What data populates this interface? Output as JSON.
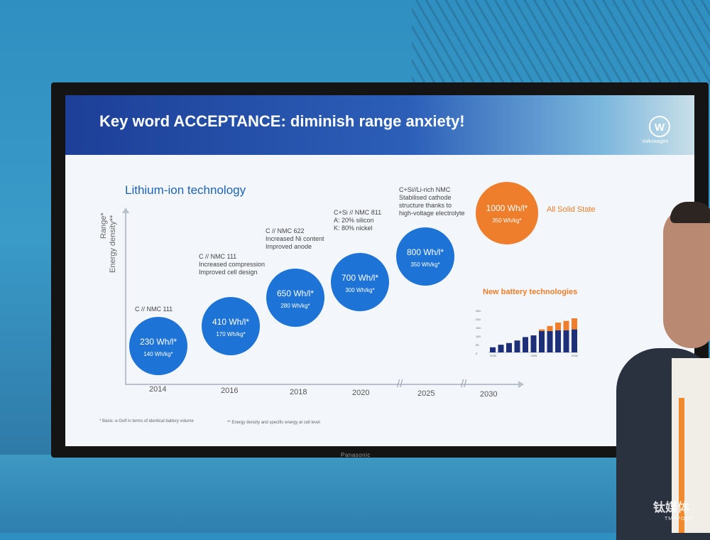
{
  "slide": {
    "title": "Key word ACCEPTANCE: diminish range anxiety!",
    "logo_label": "Volkswagen",
    "subtitle": "Lithium-ion technology",
    "y_axis_labels": [
      "Range*",
      "Energy density**"
    ],
    "years": [
      "2014",
      "2016",
      "2018",
      "2020",
      "2025",
      "2030"
    ],
    "milestones": [
      {
        "desc": [
          "C // NMC 111"
        ],
        "wh_l": "230 Wh/l*",
        "wh_kg": "140 Wh/kg*"
      },
      {
        "desc": [
          "C // NMC 111",
          "Increased compression",
          "Improved cell design"
        ],
        "wh_l": "410 Wh/l*",
        "wh_kg": "170 Wh/kg*"
      },
      {
        "desc": [
          "C // NMC 622",
          "Increased Ni content",
          "Improved anode"
        ],
        "wh_l": "650 Wh/l*",
        "wh_kg": "280 Wh/kg*"
      },
      {
        "desc": [
          "C+Si // NMC 811",
          "A: 20% silicon",
          "K: 80% nickel"
        ],
        "wh_l": "700 Wh/l*",
        "wh_kg": "300 Wh/kg*"
      },
      {
        "desc": [
          "C+Si//Li-rich NMC",
          "Stabilised cathode",
          "structure thanks to",
          "high-voltage electrolyte"
        ],
        "wh_l": "800 Wh/l*",
        "wh_kg": "350 Wh/kg*"
      }
    ],
    "solid_state": {
      "wh_l": "1000 Wh/l*",
      "wh_kg": "350 Wh/kg*",
      "label": "All Solid State"
    },
    "new_tech_title": "New battery technologies",
    "mini_chart": {
      "y_ticks": [
        "250",
        "200",
        "150",
        "100",
        "50",
        "0"
      ],
      "x_ticks": [
        "2020",
        "2025",
        "2030"
      ],
      "blue": [
        0.3,
        0.45,
        0.55,
        0.7,
        0.9,
        1.0,
        1.25,
        1.25,
        1.3,
        1.3,
        1.35
      ],
      "orange": [
        0,
        0,
        0,
        0,
        0,
        0,
        0.1,
        0.3,
        0.45,
        0.55,
        0.65
      ],
      "ymax": 2.5
    },
    "footnotes": [
      "* Basis: e-Golf in terms of identical battery volume",
      "** Energy density and specific energy at cell level"
    ],
    "colors": {
      "blue": "#1d73d6",
      "orange": "#ee7e2c"
    }
  },
  "tv_brand": "Panasonic",
  "watermark": {
    "cn": "钛媒体",
    "en": "TMTPOST"
  }
}
